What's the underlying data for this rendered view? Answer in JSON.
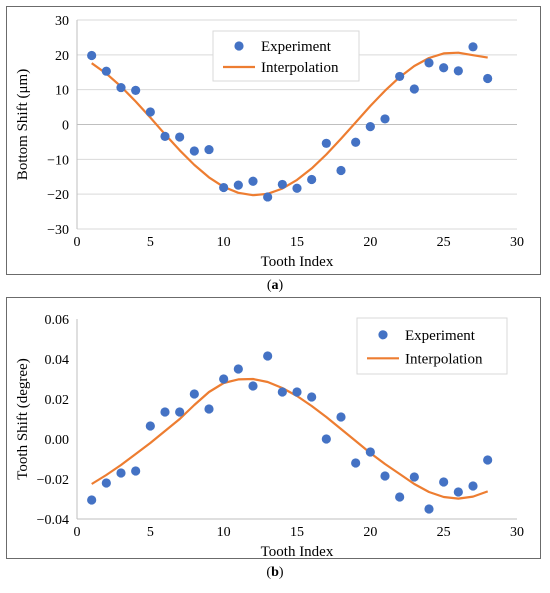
{
  "charts": [
    {
      "caption_prefix": "(",
      "caption_letter": "a",
      "caption_suffix": ")",
      "chart_data": {
        "type": "scatter",
        "xlabel": "Tooth Index",
        "ylabel": "Bottom Shift (μm)",
        "xlim": [
          0,
          30
        ],
        "ylim": [
          -30,
          30
        ],
        "xticks": [
          0,
          5,
          10,
          15,
          20,
          25,
          30
        ],
        "yticks": [
          -30,
          -20,
          -10,
          0,
          10,
          20,
          30
        ],
        "ytick_labels": [
          "−30",
          "−20",
          "−10",
          "0",
          "10",
          "20",
          "30"
        ],
        "grid": "horizontal",
        "legend": "top-center",
        "series": [
          {
            "name": "Experiment",
            "kind": "scatter",
            "color": "#4472C4",
            "x": [
              1,
              2,
              3,
              4,
              5,
              6,
              7,
              8,
              9,
              10,
              11,
              12,
              13,
              14,
              15,
              16,
              17,
              18,
              19,
              20,
              21,
              22,
              23,
              24,
              25,
              26,
              27,
              28
            ],
            "y": [
              19.8,
              15.3,
              10.6,
              9.8,
              3.6,
              -3.4,
              -3.6,
              -7.6,
              -7.2,
              -18.1,
              -17.4,
              -16.3,
              -20.8,
              -17.2,
              -18.3,
              -15.8,
              -5.4,
              -13.2,
              -5.1,
              -0.6,
              1.6,
              13.8,
              10.2,
              17.7,
              16.3,
              15.4,
              22.3,
              13.2
            ]
          },
          {
            "name": "Interpolation",
            "kind": "line",
            "color": "#ED7D31",
            "x": [
              1,
              2,
              3,
              4,
              5,
              6,
              7,
              8,
              9,
              10,
              11,
              12,
              13,
              14,
              15,
              16,
              17,
              18,
              19,
              20,
              21,
              22,
              23,
              24,
              25,
              26,
              27,
              28
            ],
            "y": [
              17.6,
              14.6,
              10.9,
              6.6,
              2.0,
              -2.8,
              -7.4,
              -11.6,
              -15.2,
              -17.9,
              -19.6,
              -20.3,
              -19.9,
              -18.4,
              -15.9,
              -12.6,
              -8.6,
              -4.1,
              0.6,
              5.3,
              9.7,
              13.6,
              16.8,
              19.1,
              20.4,
              20.6,
              19.9,
              19.2
            ]
          }
        ]
      }
    },
    {
      "caption_prefix": "(",
      "caption_letter": "b",
      "caption_suffix": ")",
      "chart_data": {
        "type": "scatter",
        "xlabel": "Tooth Index",
        "ylabel": "Tooth Shift (degree)",
        "xlim": [
          0,
          30
        ],
        "ylim": [
          -0.04,
          0.06
        ],
        "xticks": [
          0,
          5,
          10,
          15,
          20,
          25,
          30
        ],
        "yticks": [
          -0.04,
          -0.02,
          0.0,
          0.02,
          0.04,
          0.06
        ],
        "ytick_labels": [
          "−0.04",
          "−0.02",
          "0.00",
          "0.02",
          "0.04",
          "0.06"
        ],
        "grid": "none",
        "legend": "top-right",
        "series": [
          {
            "name": "Experiment",
            "kind": "scatter",
            "color": "#4472C4",
            "x": [
              1,
              2,
              3,
              4,
              5,
              6,
              7,
              8,
              9,
              10,
              11,
              12,
              13,
              14,
              15,
              16,
              17,
              18,
              19,
              20,
              21,
              22,
              23,
              24,
              25,
              26,
              27,
              28
            ],
            "y": [
              -0.0305,
              -0.022,
              -0.017,
              -0.016,
              0.0065,
              0.0135,
              0.0135,
              0.0225,
              0.015,
              0.03,
              0.035,
              0.0265,
              0.0415,
              0.0235,
              0.0235,
              0.021,
              0.0,
              0.011,
              -0.012,
              -0.0065,
              -0.0185,
              -0.029,
              -0.019,
              -0.035,
              -0.0215,
              -0.0265,
              -0.0235,
              -0.0105
            ]
          },
          {
            "name": "Interpolation",
            "kind": "line",
            "color": "#ED7D31",
            "x": [
              1,
              2,
              3,
              4,
              5,
              6,
              7,
              8,
              9,
              10,
              11,
              12,
              13,
              14,
              15,
              16,
              17,
              18,
              19,
              20,
              21,
              22,
              23,
              24,
              25,
              26,
              27,
              28
            ],
            "y": [
              -0.0225,
              -0.018,
              -0.013,
              -0.0075,
              -0.002,
              0.004,
              0.01,
              0.017,
              0.0235,
              0.028,
              0.0298,
              0.03,
              0.0285,
              0.0255,
              0.0215,
              0.0165,
              0.011,
              0.005,
              -0.001,
              -0.007,
              -0.0125,
              -0.0175,
              -0.0225,
              -0.0265,
              -0.029,
              -0.0298,
              -0.0288,
              -0.0262
            ]
          }
        ]
      }
    }
  ]
}
